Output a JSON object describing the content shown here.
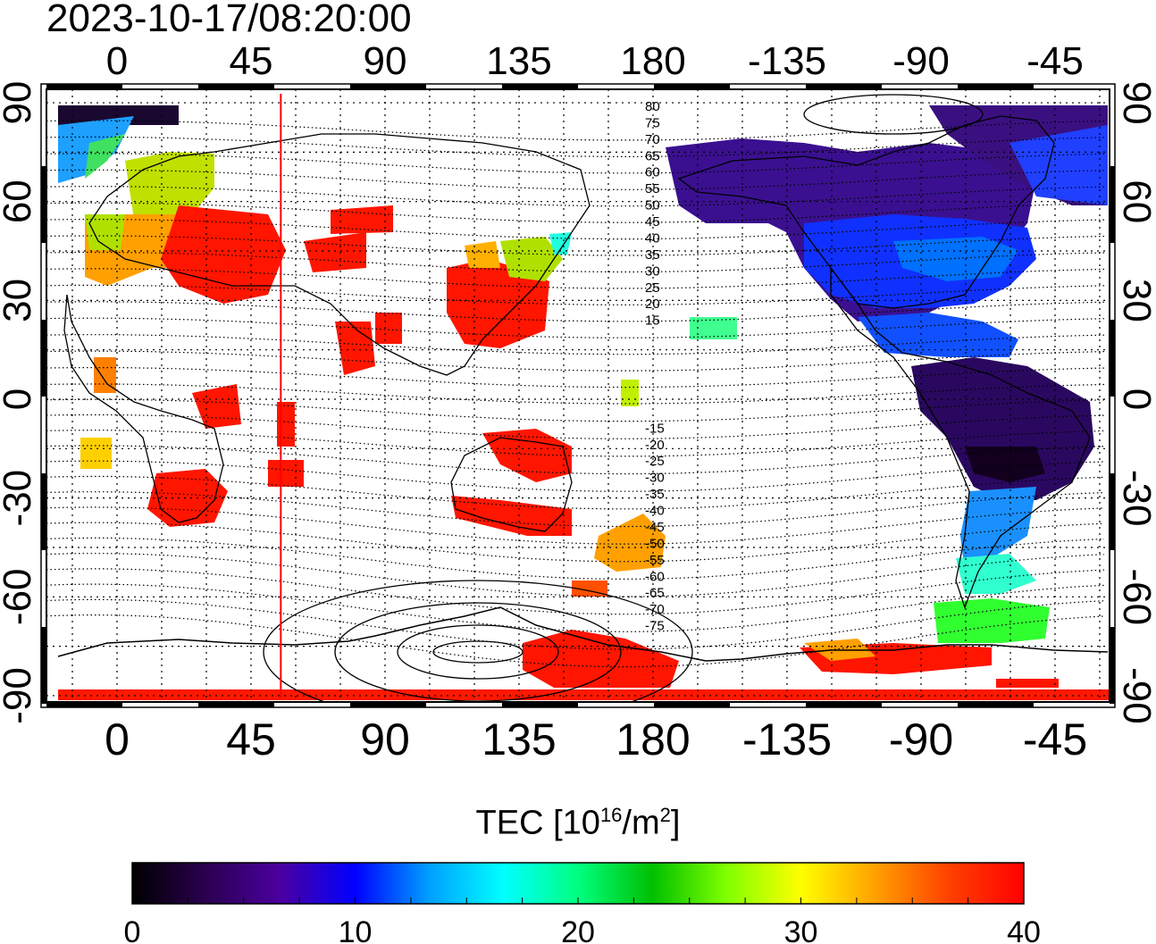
{
  "timestamp": "2023-10-17/08:20:00",
  "map": {
    "top_lon_labels": [
      "0",
      "45",
      "90",
      "135",
      "180",
      "-135",
      "-90",
      "-45"
    ],
    "bottom_lon_labels": [
      "0",
      "45",
      "90",
      "135",
      "180",
      "-135",
      "-90",
      "-45"
    ],
    "left_lat_labels": [
      "90",
      "60",
      "30",
      "0",
      "-30",
      "-60",
      "-90"
    ],
    "right_lat_labels": [
      "90",
      "60",
      "30",
      "0",
      "-30",
      "-60",
      "-90"
    ],
    "magnetic_latitude_labels": [
      "80",
      "75",
      "70",
      "65",
      "60",
      "55",
      "50",
      "45",
      "40",
      "35",
      "30",
      "25",
      "20",
      "15",
      "-15",
      "-20",
      "-25",
      "-30",
      "-35",
      "-40",
      "-45",
      "-50",
      "-55",
      "-60",
      "-65",
      "-70",
      "-75"
    ],
    "marker_longitude": 55
  },
  "colorbar": {
    "title_main": "TEC  [10",
    "title_exp": "16",
    "title_unit": "/m",
    "title_unit_exp": "2",
    "title_close": "]",
    "tick_labels": [
      "0",
      "10",
      "20",
      "30",
      "40"
    ],
    "colormap": [
      "#000000",
      "#2a0050",
      "#4b00a0",
      "#0000ff",
      "#00a0ff",
      "#00ffff",
      "#00ff80",
      "#00c000",
      "#80ff00",
      "#ffff00",
      "#ffa000",
      "#ff4000",
      "#ff0000"
    ]
  },
  "colors": {
    "marker_line": "#ff0000",
    "high_tec": "#ff2000",
    "low_tec": "#3a1070"
  }
}
